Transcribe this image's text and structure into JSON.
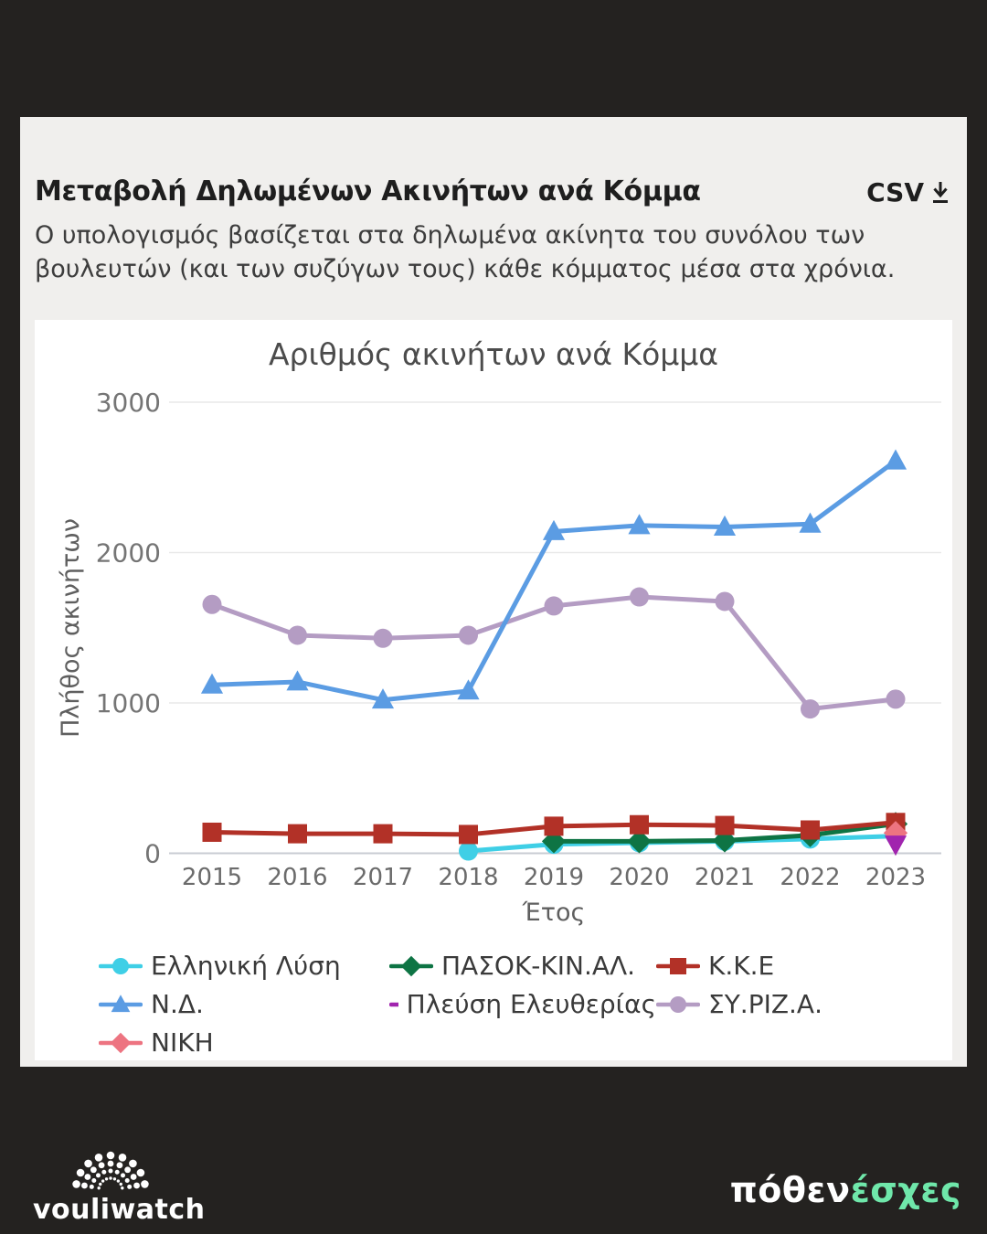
{
  "header": {
    "title": "Μεταβολή Δηλωμένων Ακινήτων ανά Κόμμα",
    "csv_label": "CSV",
    "description": "Ο υπολογισμός βασίζεται στα δηλωμένα ακίνητα του συνόλου των βουλευτών (και των συζύγων τους) κάθε κόμματος μέσα στα χρόνια."
  },
  "chart_data": {
    "type": "line",
    "title": "Αριθμός ακινήτων ανά Κόμμα",
    "xlabel": "Έτος",
    "ylabel": "Πλήθος ακινήτων",
    "x": [
      "2015",
      "2016",
      "2017",
      "2018",
      "2019",
      "2020",
      "2021",
      "2022",
      "2023"
    ],
    "ylim": [
      0,
      3000
    ],
    "yticks": [
      0,
      1000,
      2000,
      3000
    ],
    "grid": "horizontal",
    "legend_position": "bottom",
    "series": [
      {
        "name": "ΣΥ.ΡΙΖ.Α.",
        "color": "#b49cc3",
        "marker": "circle",
        "values": [
          1655,
          1450,
          1430,
          1450,
          1645,
          1705,
          1675,
          960,
          1025
        ]
      },
      {
        "name": "Ν.Δ.",
        "color": "#5b9ce3",
        "marker": "triangle-up",
        "values": [
          1120,
          1140,
          1020,
          1080,
          2140,
          2180,
          2170,
          2190,
          2610
        ]
      },
      {
        "name": "Ελληνική Λύση",
        "color": "#3fcfe6",
        "marker": "circle",
        "values": [
          null,
          null,
          null,
          15,
          60,
          70,
          80,
          95,
          115
        ]
      },
      {
        "name": "ΠΑΣΟΚ-ΚΙΝ.ΑΛ.",
        "color": "#0e7444",
        "marker": "diamond",
        "values": [
          null,
          null,
          null,
          null,
          80,
          80,
          85,
          120,
          195
        ]
      },
      {
        "name": "Κ.Κ.Ε",
        "color": "#b23127",
        "marker": "square",
        "values": [
          140,
          130,
          130,
          125,
          180,
          190,
          185,
          155,
          205
        ]
      },
      {
        "name": "ΝΙΚΗ",
        "color": "#ed7481",
        "marker": "diamond",
        "values": [
          null,
          null,
          null,
          null,
          null,
          null,
          null,
          null,
          135
        ]
      },
      {
        "name": "Πλεύση Ελευθερίας",
        "color": "#a124ae",
        "marker": "triangle-down",
        "values": [
          null,
          null,
          null,
          null,
          null,
          null,
          null,
          null,
          60
        ]
      }
    ],
    "legend_order": [
      2,
      3,
      4,
      1,
      6,
      0,
      5
    ]
  },
  "footer": {
    "vouliwatch_label": "vouliwatch",
    "pothen_part1": "πόθεν",
    "pothen_part2": "έσχες",
    "pothen_part2_color": "#6fe7aa"
  },
  "style_colors": {
    "background": "#242220",
    "card": "#f0efed",
    "panel": "#ffffff",
    "gridline": "#e9e9e9",
    "baseline": "#c9ccd3"
  }
}
